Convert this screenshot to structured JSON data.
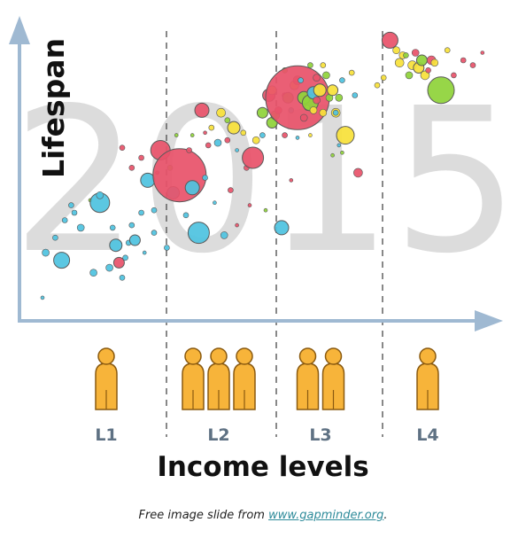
{
  "chart_data": {
    "type": "scatter",
    "title": "",
    "year": "2015",
    "xlabel": "Income levels",
    "ylabel": "Lifespan",
    "levels": [
      {
        "label": "L1",
        "people": 1
      },
      {
        "label": "L2",
        "people": 3
      },
      {
        "label": "L3",
        "people": 2
      },
      {
        "label": "L4",
        "people": 1
      }
    ],
    "colors": {
      "blue": "#4fc3e0",
      "red": "#e8536a",
      "green": "#8fd33a",
      "yellow": "#f7e13a",
      "axis": "#9fb9d2",
      "divider": "#555555",
      "person_fill": "#f7b43a",
      "person_stroke": "#8a5a10"
    },
    "bubbles": [
      [
        0.05,
        0.05,
        2,
        "blue"
      ],
      [
        0.06,
        0.23,
        4,
        "blue"
      ],
      [
        0.11,
        0.2,
        9,
        "blue"
      ],
      [
        0.09,
        0.29,
        3,
        "blue"
      ],
      [
        0.12,
        0.36,
        3,
        "blue"
      ],
      [
        0.14,
        0.42,
        3,
        "blue"
      ],
      [
        0.15,
        0.39,
        3,
        "blue"
      ],
      [
        0.17,
        0.33,
        4,
        "blue"
      ],
      [
        0.21,
        0.15,
        4,
        "blue"
      ],
      [
        0.2,
        0.44,
        2,
        "green"
      ],
      [
        0.23,
        0.43,
        11,
        "blue"
      ],
      [
        0.23,
        0.46,
        4,
        "blue"
      ],
      [
        0.26,
        0.17,
        4,
        "blue"
      ],
      [
        0.27,
        0.33,
        3,
        "blue"
      ],
      [
        0.28,
        0.26,
        7,
        "blue"
      ],
      [
        0.29,
        0.19,
        6,
        "red"
      ],
      [
        0.3,
        0.13,
        3,
        "blue"
      ],
      [
        0.31,
        0.21,
        3,
        "blue"
      ],
      [
        0.32,
        0.27,
        3,
        "blue"
      ],
      [
        0.33,
        0.34,
        3,
        "blue"
      ],
      [
        0.34,
        0.28,
        6,
        "blue"
      ],
      [
        0.36,
        0.39,
        3,
        "blue"
      ],
      [
        0.37,
        0.23,
        2,
        "blue"
      ],
      [
        0.38,
        0.52,
        8,
        "blue"
      ],
      [
        0.3,
        0.65,
        3,
        "red"
      ],
      [
        0.33,
        0.57,
        3,
        "red"
      ],
      [
        0.36,
        0.61,
        3,
        "red"
      ],
      [
        0.4,
        0.4,
        3,
        "blue"
      ],
      [
        0.4,
        0.31,
        3,
        "blue"
      ],
      [
        0.41,
        0.55,
        2,
        "red"
      ],
      [
        0.42,
        0.64,
        11,
        "red"
      ],
      [
        0.44,
        0.25,
        3,
        "blue"
      ],
      [
        0.45,
        0.57,
        3,
        "green"
      ],
      [
        0.46,
        0.47,
        7,
        "blue"
      ],
      [
        0.47,
        0.7,
        2,
        "green"
      ],
      [
        0.48,
        0.54,
        30,
        "red"
      ],
      [
        0.5,
        0.38,
        3,
        "blue"
      ],
      [
        0.51,
        0.64,
        3,
        "red"
      ],
      [
        0.52,
        0.7,
        2,
        "green"
      ],
      [
        0.52,
        0.49,
        8,
        "blue"
      ],
      [
        0.54,
        0.31,
        12,
        "blue"
      ],
      [
        0.55,
        0.8,
        8,
        "red"
      ],
      [
        0.56,
        0.71,
        2,
        "red"
      ],
      [
        0.56,
        0.53,
        3,
        "blue"
      ],
      [
        0.57,
        0.66,
        3,
        "red"
      ],
      [
        0.58,
        0.73,
        3,
        "yellow"
      ],
      [
        0.59,
        0.43,
        2,
        "blue"
      ],
      [
        0.6,
        0.67,
        4,
        "blue"
      ],
      [
        0.61,
        0.79,
        5,
        "yellow"
      ],
      [
        0.62,
        0.3,
        4,
        "blue"
      ],
      [
        0.63,
        0.76,
        3,
        "green"
      ],
      [
        0.63,
        0.68,
        3,
        "red"
      ],
      [
        0.64,
        0.48,
        3,
        "red"
      ],
      [
        0.65,
        0.73,
        7,
        "yellow"
      ],
      [
        0.66,
        0.64,
        2,
        "blue"
      ],
      [
        0.66,
        0.34,
        2,
        "red"
      ],
      [
        0.68,
        0.71,
        3,
        "yellow"
      ],
      [
        0.69,
        0.57,
        3,
        "red"
      ],
      [
        0.7,
        0.42,
        2,
        "red"
      ],
      [
        0.71,
        0.61,
        12,
        "red"
      ],
      [
        0.72,
        0.68,
        4,
        "yellow"
      ],
      [
        0.74,
        0.7,
        3,
        "blue"
      ],
      [
        0.74,
        0.79,
        6,
        "green"
      ],
      [
        0.75,
        0.4,
        2,
        "green"
      ],
      [
        0.76,
        0.86,
        7,
        "red"
      ],
      [
        0.77,
        0.75,
        6,
        "green"
      ],
      [
        0.77,
        0.88,
        5,
        "yellow"
      ],
      [
        0.78,
        0.78,
        5,
        "green"
      ],
      [
        0.79,
        0.8,
        4,
        "red"
      ],
      [
        0.8,
        0.33,
        8,
        "blue"
      ],
      [
        0.81,
        0.7,
        3,
        "red"
      ],
      [
        0.81,
        0.86,
        3,
        "red"
      ],
      [
        0.81,
        0.96,
        3,
        "green"
      ],
      [
        0.82,
        0.85,
        6,
        "green"
      ],
      [
        0.83,
        0.8,
        3,
        "blue"
      ],
      [
        0.83,
        0.52,
        2,
        "red"
      ],
      [
        0.84,
        0.9,
        5,
        "yellow"
      ],
      [
        0.85,
        0.69,
        2,
        "blue"
      ],
      [
        0.85,
        0.92,
        5,
        "red"
      ],
      [
        0.85,
        0.85,
        36,
        "red"
      ],
      [
        0.86,
        0.92,
        3,
        "blue"
      ],
      [
        0.87,
        0.77,
        4,
        "red"
      ],
      [
        0.87,
        0.85,
        7,
        "green"
      ],
      [
        0.88,
        0.81,
        3,
        "yellow"
      ],
      [
        0.89,
        0.98,
        3,
        "green"
      ],
      [
        0.89,
        0.83,
        9,
        "green"
      ],
      [
        0.89,
        0.7,
        2,
        "yellow"
      ],
      [
        0.9,
        0.87,
        7,
        "blue"
      ],
      [
        0.9,
        0.8,
        4,
        "yellow"
      ],
      [
        0.91,
        0.93,
        4,
        "red"
      ],
      [
        0.91,
        0.84,
        4,
        "red"
      ],
      [
        0.92,
        0.88,
        7,
        "yellow"
      ],
      [
        0.93,
        0.98,
        3,
        "yellow"
      ],
      [
        0.93,
        0.79,
        4,
        "yellow"
      ],
      [
        0.94,
        0.94,
        4,
        "green"
      ],
      [
        0.95,
        0.85,
        4,
        "green"
      ],
      [
        0.96,
        0.62,
        2,
        "green"
      ],
      [
        0.96,
        0.88,
        6,
        "yellow"
      ],
      [
        0.97,
        0.79,
        5,
        "yellow"
      ],
      [
        0.97,
        0.79,
        3,
        "blue"
      ],
      [
        0.98,
        0.66,
        2,
        "blue"
      ],
      [
        0.98,
        0.85,
        4,
        "green"
      ],
      [
        0.99,
        0.63,
        2,
        "green"
      ],
      [
        0.99,
        0.92,
        3,
        "blue"
      ],
      [
        1.0,
        0.7,
        10,
        "yellow"
      ],
      [
        1.02,
        0.95,
        3,
        "yellow"
      ],
      [
        1.03,
        0.86,
        3,
        "blue"
      ],
      [
        1.04,
        0.55,
        5,
        "red"
      ],
      [
        1.1,
        0.9,
        3,
        "yellow"
      ],
      [
        1.12,
        0.93,
        3,
        "yellow"
      ],
      [
        1.14,
        1.08,
        9,
        "red"
      ],
      [
        1.16,
        1.04,
        4,
        "yellow"
      ],
      [
        1.17,
        0.99,
        5,
        "yellow"
      ],
      [
        1.18,
        1.02,
        4,
        "yellow"
      ],
      [
        1.19,
        1.02,
        3,
        "green"
      ],
      [
        1.2,
        0.94,
        4,
        "green"
      ],
      [
        1.21,
        0.98,
        5,
        "yellow"
      ],
      [
        1.22,
        1.03,
        4,
        "red"
      ],
      [
        1.23,
        0.97,
        6,
        "yellow"
      ],
      [
        1.24,
        1.0,
        6,
        "green"
      ],
      [
        1.25,
        0.94,
        5,
        "yellow"
      ],
      [
        1.26,
        0.96,
        3,
        "red"
      ],
      [
        1.27,
        1.0,
        5,
        "red"
      ],
      [
        1.28,
        0.99,
        4,
        "yellow"
      ],
      [
        1.3,
        0.88,
        15,
        "green"
      ],
      [
        1.32,
        1.04,
        3,
        "yellow"
      ],
      [
        1.34,
        0.94,
        3,
        "red"
      ],
      [
        1.37,
        1.0,
        3,
        "red"
      ],
      [
        1.4,
        0.98,
        3,
        "red"
      ],
      [
        1.43,
        1.03,
        2,
        "red"
      ]
    ]
  },
  "footer": {
    "prefix": "Free image slide from ",
    "link": "www.gapminder.org",
    "suffix": "."
  }
}
